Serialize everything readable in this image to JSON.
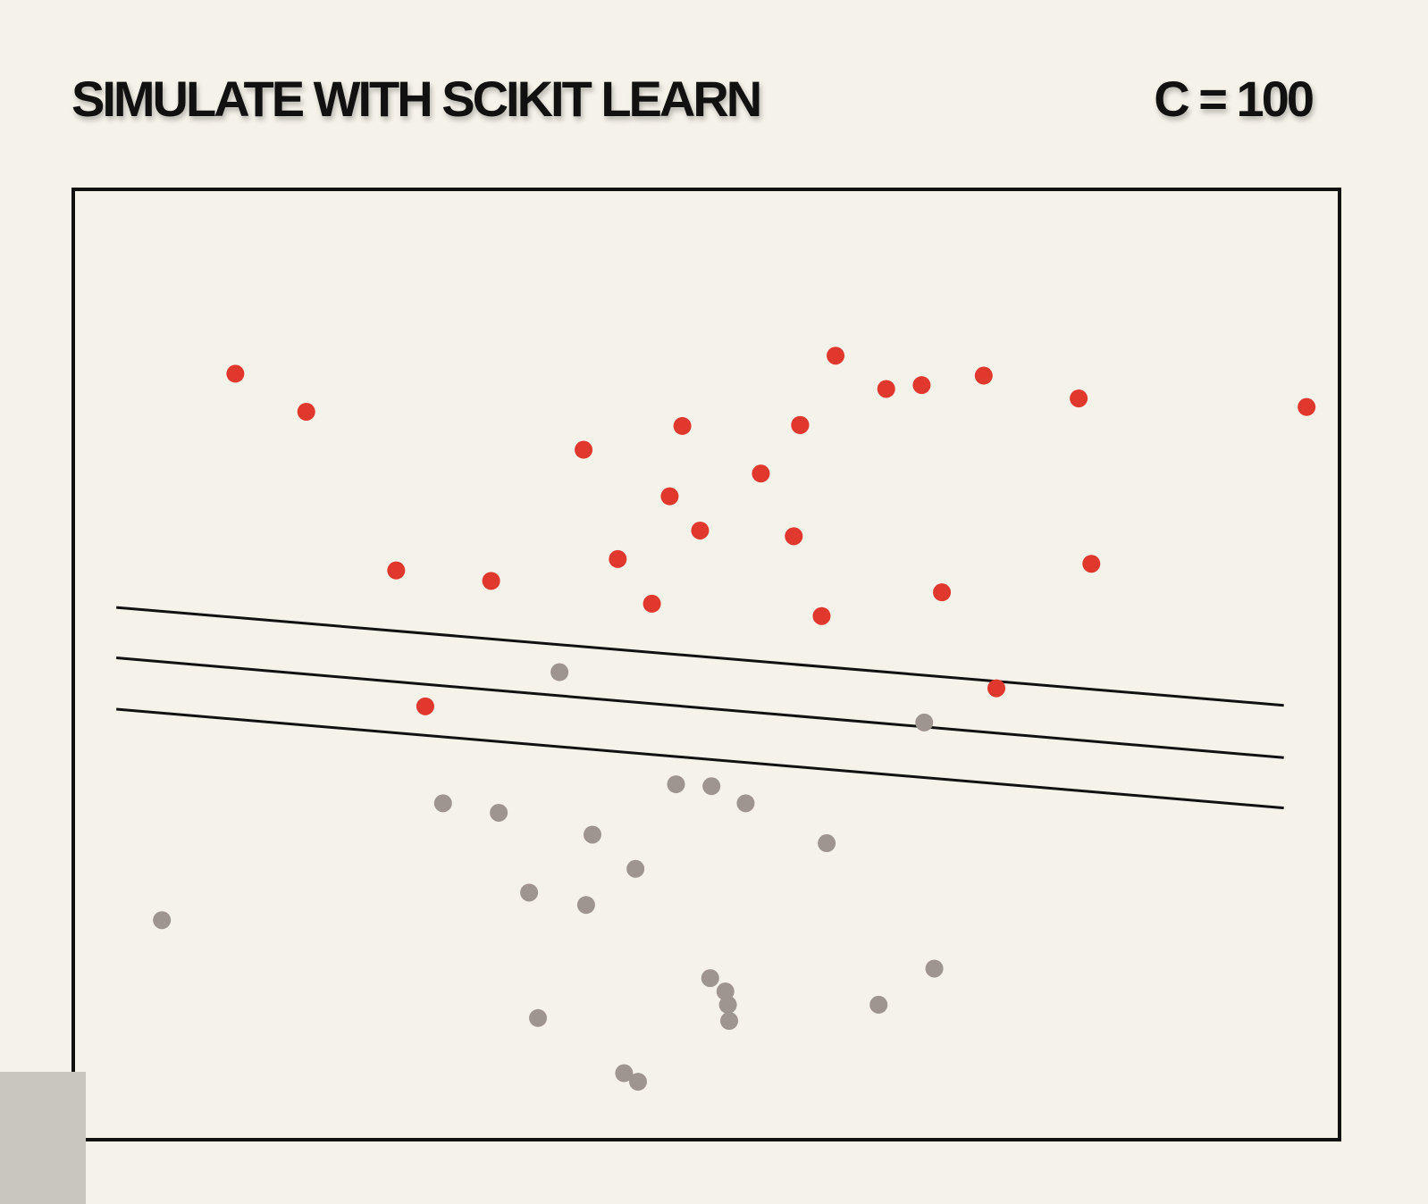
{
  "header": {
    "title": "SIMULATE WITH SCIKIT LEARN",
    "param_label": "C = 100"
  },
  "chart_data": {
    "type": "scatter",
    "title": "",
    "xlabel": "",
    "ylabel": "",
    "xlim": [
      0,
      100
    ],
    "ylim": [
      0,
      100
    ],
    "grid": false,
    "legend": "none",
    "colors": {
      "positive": "#e0382c",
      "negative": "#9e958f",
      "line": "#111111",
      "frame": "#111111"
    },
    "series": [
      {
        "class": "positive",
        "points": [
          [
            12.8,
            80.6
          ],
          [
            25.5,
            59.9
          ],
          [
            18.4,
            76.6
          ],
          [
            27.8,
            45.6
          ],
          [
            40.3,
            72.6
          ],
          [
            45.7,
            56.4
          ],
          [
            47.1,
            67.7
          ],
          [
            49.5,
            64.1
          ],
          [
            54.3,
            70.1
          ],
          [
            57.4,
            75.2
          ],
          [
            57.4,
            75.2
          ],
          [
            56.9,
            63.5
          ],
          [
            59.1,
            55.1
          ],
          [
            60.2,
            82.5
          ],
          [
            64.2,
            79.0
          ],
          [
            67.0,
            79.4
          ],
          [
            68.6,
            57.6
          ],
          [
            72.9,
            47.5
          ],
          [
            71.9,
            80.4
          ],
          [
            79.4,
            78.0
          ],
          [
            80.4,
            60.6
          ],
          [
            97.4,
            77.1
          ],
          [
            48.1,
            75.1
          ],
          [
            43.0,
            61.1
          ],
          [
            33.0,
            58.8
          ]
        ]
      },
      {
        "class": "negative",
        "points": [
          [
            38.4,
            49.2
          ],
          [
            29.2,
            35.4
          ],
          [
            41.0,
            32.1
          ],
          [
            36.0,
            26.0
          ],
          [
            44.4,
            28.5
          ],
          [
            47.6,
            37.4
          ],
          [
            50.4,
            37.2
          ],
          [
            53.1,
            35.4
          ],
          [
            59.5,
            31.2
          ],
          [
            67.2,
            43.9
          ],
          [
            7.0,
            23.1
          ],
          [
            36.7,
            12.8
          ],
          [
            50.3,
            17.0
          ],
          [
            51.5,
            15.6
          ],
          [
            51.7,
            14.2
          ],
          [
            51.8,
            12.5
          ],
          [
            63.6,
            14.2
          ],
          [
            68.0,
            18.0
          ],
          [
            43.5,
            7.0
          ],
          [
            44.6,
            6.1
          ],
          [
            33.6,
            34.4
          ],
          [
            40.5,
            24.7
          ]
        ]
      }
    ],
    "lines": [
      {
        "name": "",
        "from": [
          3.4,
          56.0
        ],
        "to": [
          95.6,
          45.7
        ]
      },
      {
        "name": "",
        "from": [
          3.4,
          50.7
        ],
        "to": [
          95.6,
          40.2
        ]
      },
      {
        "name": "",
        "from": [
          3.4,
          45.3
        ],
        "to": [
          95.6,
          34.9
        ]
      }
    ]
  }
}
